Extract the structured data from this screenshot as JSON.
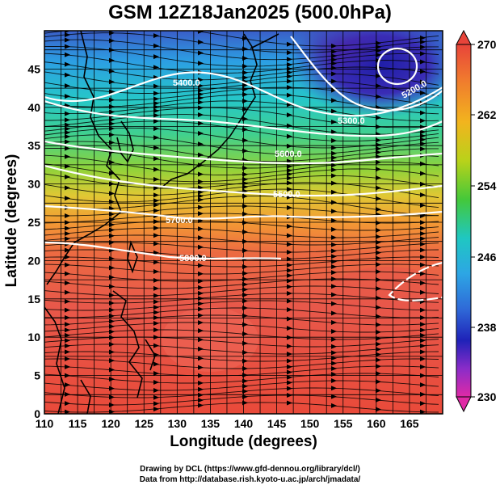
{
  "title": "GSM 12Z18Jan2025 (500.0hPa)",
  "axes": {
    "xlabel": "Longitude (degrees)",
    "ylabel": "Latitude  (degrees)",
    "xlim": [
      110,
      170
    ],
    "ylim": [
      0,
      50
    ],
    "xticks": [
      "110",
      "115",
      "120",
      "125",
      "130",
      "135",
      "140",
      "145",
      "150",
      "155",
      "160",
      "165"
    ],
    "yticks": [
      "0",
      "5",
      "10",
      "15",
      "20",
      "25",
      "30",
      "35",
      "40",
      "45"
    ]
  },
  "colorbar": {
    "min": 230,
    "max": 270,
    "labels": [
      "270",
      "262",
      "254",
      "246",
      "238",
      "230"
    ]
  },
  "contours": [
    "5400.0",
    "5300.0",
    "5600.0",
    "5500.0",
    "5700.0",
    "5800.0",
    "5200.0"
  ],
  "credits": {
    "line1": "Drawing by DCL (https://www.gfd-dennou.org/library/dcl/)",
    "line2": "Data from http://database.rish.kyoto-u.ac.jp/arch/jmadata/"
  },
  "chart_data": {
    "type": "heatmap",
    "title": "GSM 12Z18Jan2025 (500.0hPa)",
    "xlabel": "Longitude (degrees)",
    "ylabel": "Latitude  (degrees)",
    "xlim": [
      110,
      170
    ],
    "ylim": [
      0,
      50
    ],
    "colorbar_range": [
      230,
      270
    ],
    "grid": true,
    "contour_labels": [
      {
        "label": "5400.0",
        "lon": 136,
        "lat": 46
      },
      {
        "label": "5300.0",
        "lon": 153,
        "lat": 40
      },
      {
        "label": "5200.0",
        "lon": 165,
        "lat": 44
      },
      {
        "label": "5600.0",
        "lon": 145,
        "lat": 34.5
      },
      {
        "label": "5500.0",
        "lon": 145,
        "lat": 29.5
      },
      {
        "label": "5700.0",
        "lon": 132,
        "lat": 26.5
      },
      {
        "label": "5800.0",
        "lon": 133,
        "lat": 22
      }
    ]
  }
}
